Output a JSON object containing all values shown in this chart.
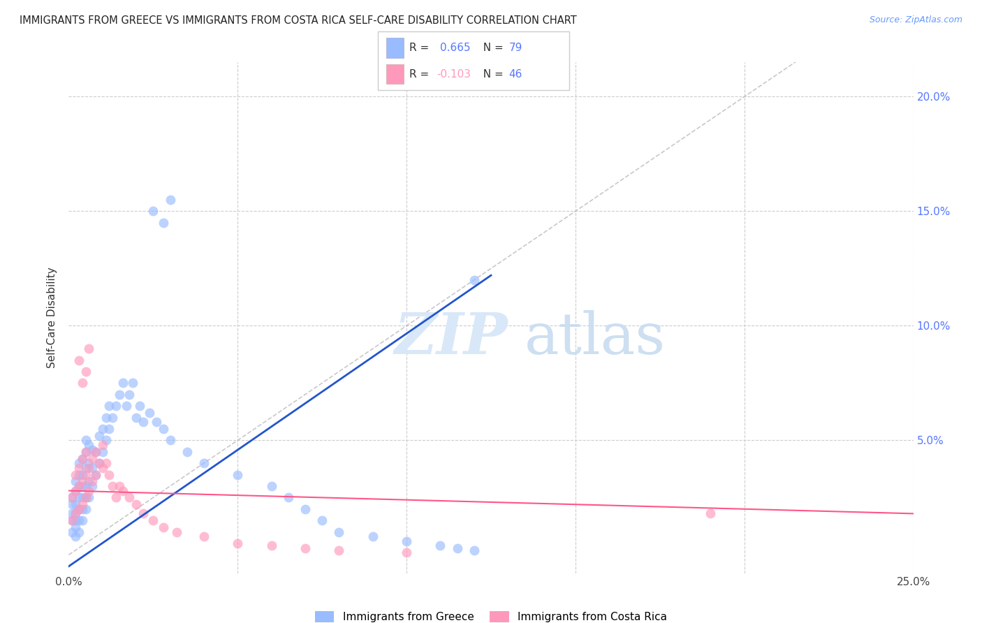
{
  "title": "IMMIGRANTS FROM GREECE VS IMMIGRANTS FROM COSTA RICA SELF-CARE DISABILITY CORRELATION CHART",
  "source": "Source: ZipAtlas.com",
  "ylabel": "Self-Care Disability",
  "xlim": [
    0.0,
    0.25
  ],
  "ylim": [
    -0.008,
    0.215
  ],
  "legend_label1": "Immigrants from Greece",
  "legend_label2": "Immigrants from Costa Rica",
  "R1": 0.665,
  "N1": 79,
  "R2": -0.103,
  "N2": 46,
  "color_blue": "#99BBFF",
  "color_pink": "#FF99BB",
  "color_line_blue": "#2255CC",
  "color_line_pink": "#FF5588",
  "color_ref_line": "#BBBBBB",
  "color_title": "#222222",
  "color_source": "#6699FF",
  "color_axis_right": "#5577FF",
  "greece_x": [
    0.001,
    0.001,
    0.001,
    0.001,
    0.001,
    0.002,
    0.002,
    0.002,
    0.002,
    0.002,
    0.002,
    0.002,
    0.003,
    0.003,
    0.003,
    0.003,
    0.003,
    0.003,
    0.003,
    0.004,
    0.004,
    0.004,
    0.004,
    0.004,
    0.004,
    0.005,
    0.005,
    0.005,
    0.005,
    0.005,
    0.005,
    0.006,
    0.006,
    0.006,
    0.006,
    0.007,
    0.007,
    0.007,
    0.008,
    0.008,
    0.009,
    0.009,
    0.01,
    0.01,
    0.011,
    0.011,
    0.012,
    0.012,
    0.013,
    0.014,
    0.015,
    0.016,
    0.017,
    0.018,
    0.019,
    0.02,
    0.021,
    0.022,
    0.024,
    0.026,
    0.028,
    0.03,
    0.035,
    0.04,
    0.05,
    0.06,
    0.065,
    0.07,
    0.075,
    0.08,
    0.09,
    0.1,
    0.11,
    0.115,
    0.12,
    0.025,
    0.028,
    0.03,
    0.12
  ],
  "greece_y": [
    0.01,
    0.015,
    0.018,
    0.022,
    0.025,
    0.008,
    0.012,
    0.015,
    0.018,
    0.022,
    0.028,
    0.032,
    0.01,
    0.015,
    0.02,
    0.025,
    0.03,
    0.035,
    0.04,
    0.015,
    0.02,
    0.025,
    0.03,
    0.035,
    0.042,
    0.02,
    0.025,
    0.03,
    0.038,
    0.045,
    0.05,
    0.025,
    0.032,
    0.04,
    0.048,
    0.03,
    0.038,
    0.046,
    0.035,
    0.045,
    0.04,
    0.052,
    0.045,
    0.055,
    0.05,
    0.06,
    0.055,
    0.065,
    0.06,
    0.065,
    0.07,
    0.075,
    0.065,
    0.07,
    0.075,
    0.06,
    0.065,
    0.058,
    0.062,
    0.058,
    0.055,
    0.05,
    0.045,
    0.04,
    0.035,
    0.03,
    0.025,
    0.02,
    0.015,
    0.01,
    0.008,
    0.006,
    0.004,
    0.003,
    0.002,
    0.15,
    0.145,
    0.155,
    0.12
  ],
  "costarica_x": [
    0.001,
    0.001,
    0.002,
    0.002,
    0.002,
    0.003,
    0.003,
    0.003,
    0.004,
    0.004,
    0.004,
    0.005,
    0.005,
    0.005,
    0.006,
    0.006,
    0.007,
    0.007,
    0.008,
    0.008,
    0.009,
    0.01,
    0.01,
    0.011,
    0.012,
    0.013,
    0.014,
    0.015,
    0.016,
    0.018,
    0.02,
    0.022,
    0.025,
    0.028,
    0.032,
    0.04,
    0.05,
    0.06,
    0.07,
    0.08,
    0.1,
    0.19,
    0.003,
    0.004,
    0.005,
    0.006
  ],
  "costarica_y": [
    0.015,
    0.025,
    0.018,
    0.028,
    0.035,
    0.02,
    0.03,
    0.038,
    0.022,
    0.032,
    0.042,
    0.025,
    0.035,
    0.045,
    0.028,
    0.038,
    0.032,
    0.042,
    0.035,
    0.045,
    0.04,
    0.038,
    0.048,
    0.04,
    0.035,
    0.03,
    0.025,
    0.03,
    0.028,
    0.025,
    0.022,
    0.018,
    0.015,
    0.012,
    0.01,
    0.008,
    0.005,
    0.004,
    0.003,
    0.002,
    0.001,
    0.018,
    0.085,
    0.075,
    0.08,
    0.09
  ],
  "blue_line_x": [
    0.0,
    0.125
  ],
  "blue_line_y": [
    -0.005,
    0.122
  ],
  "pink_line_x": [
    0.0,
    0.25
  ],
  "pink_line_y": [
    0.028,
    0.018
  ]
}
